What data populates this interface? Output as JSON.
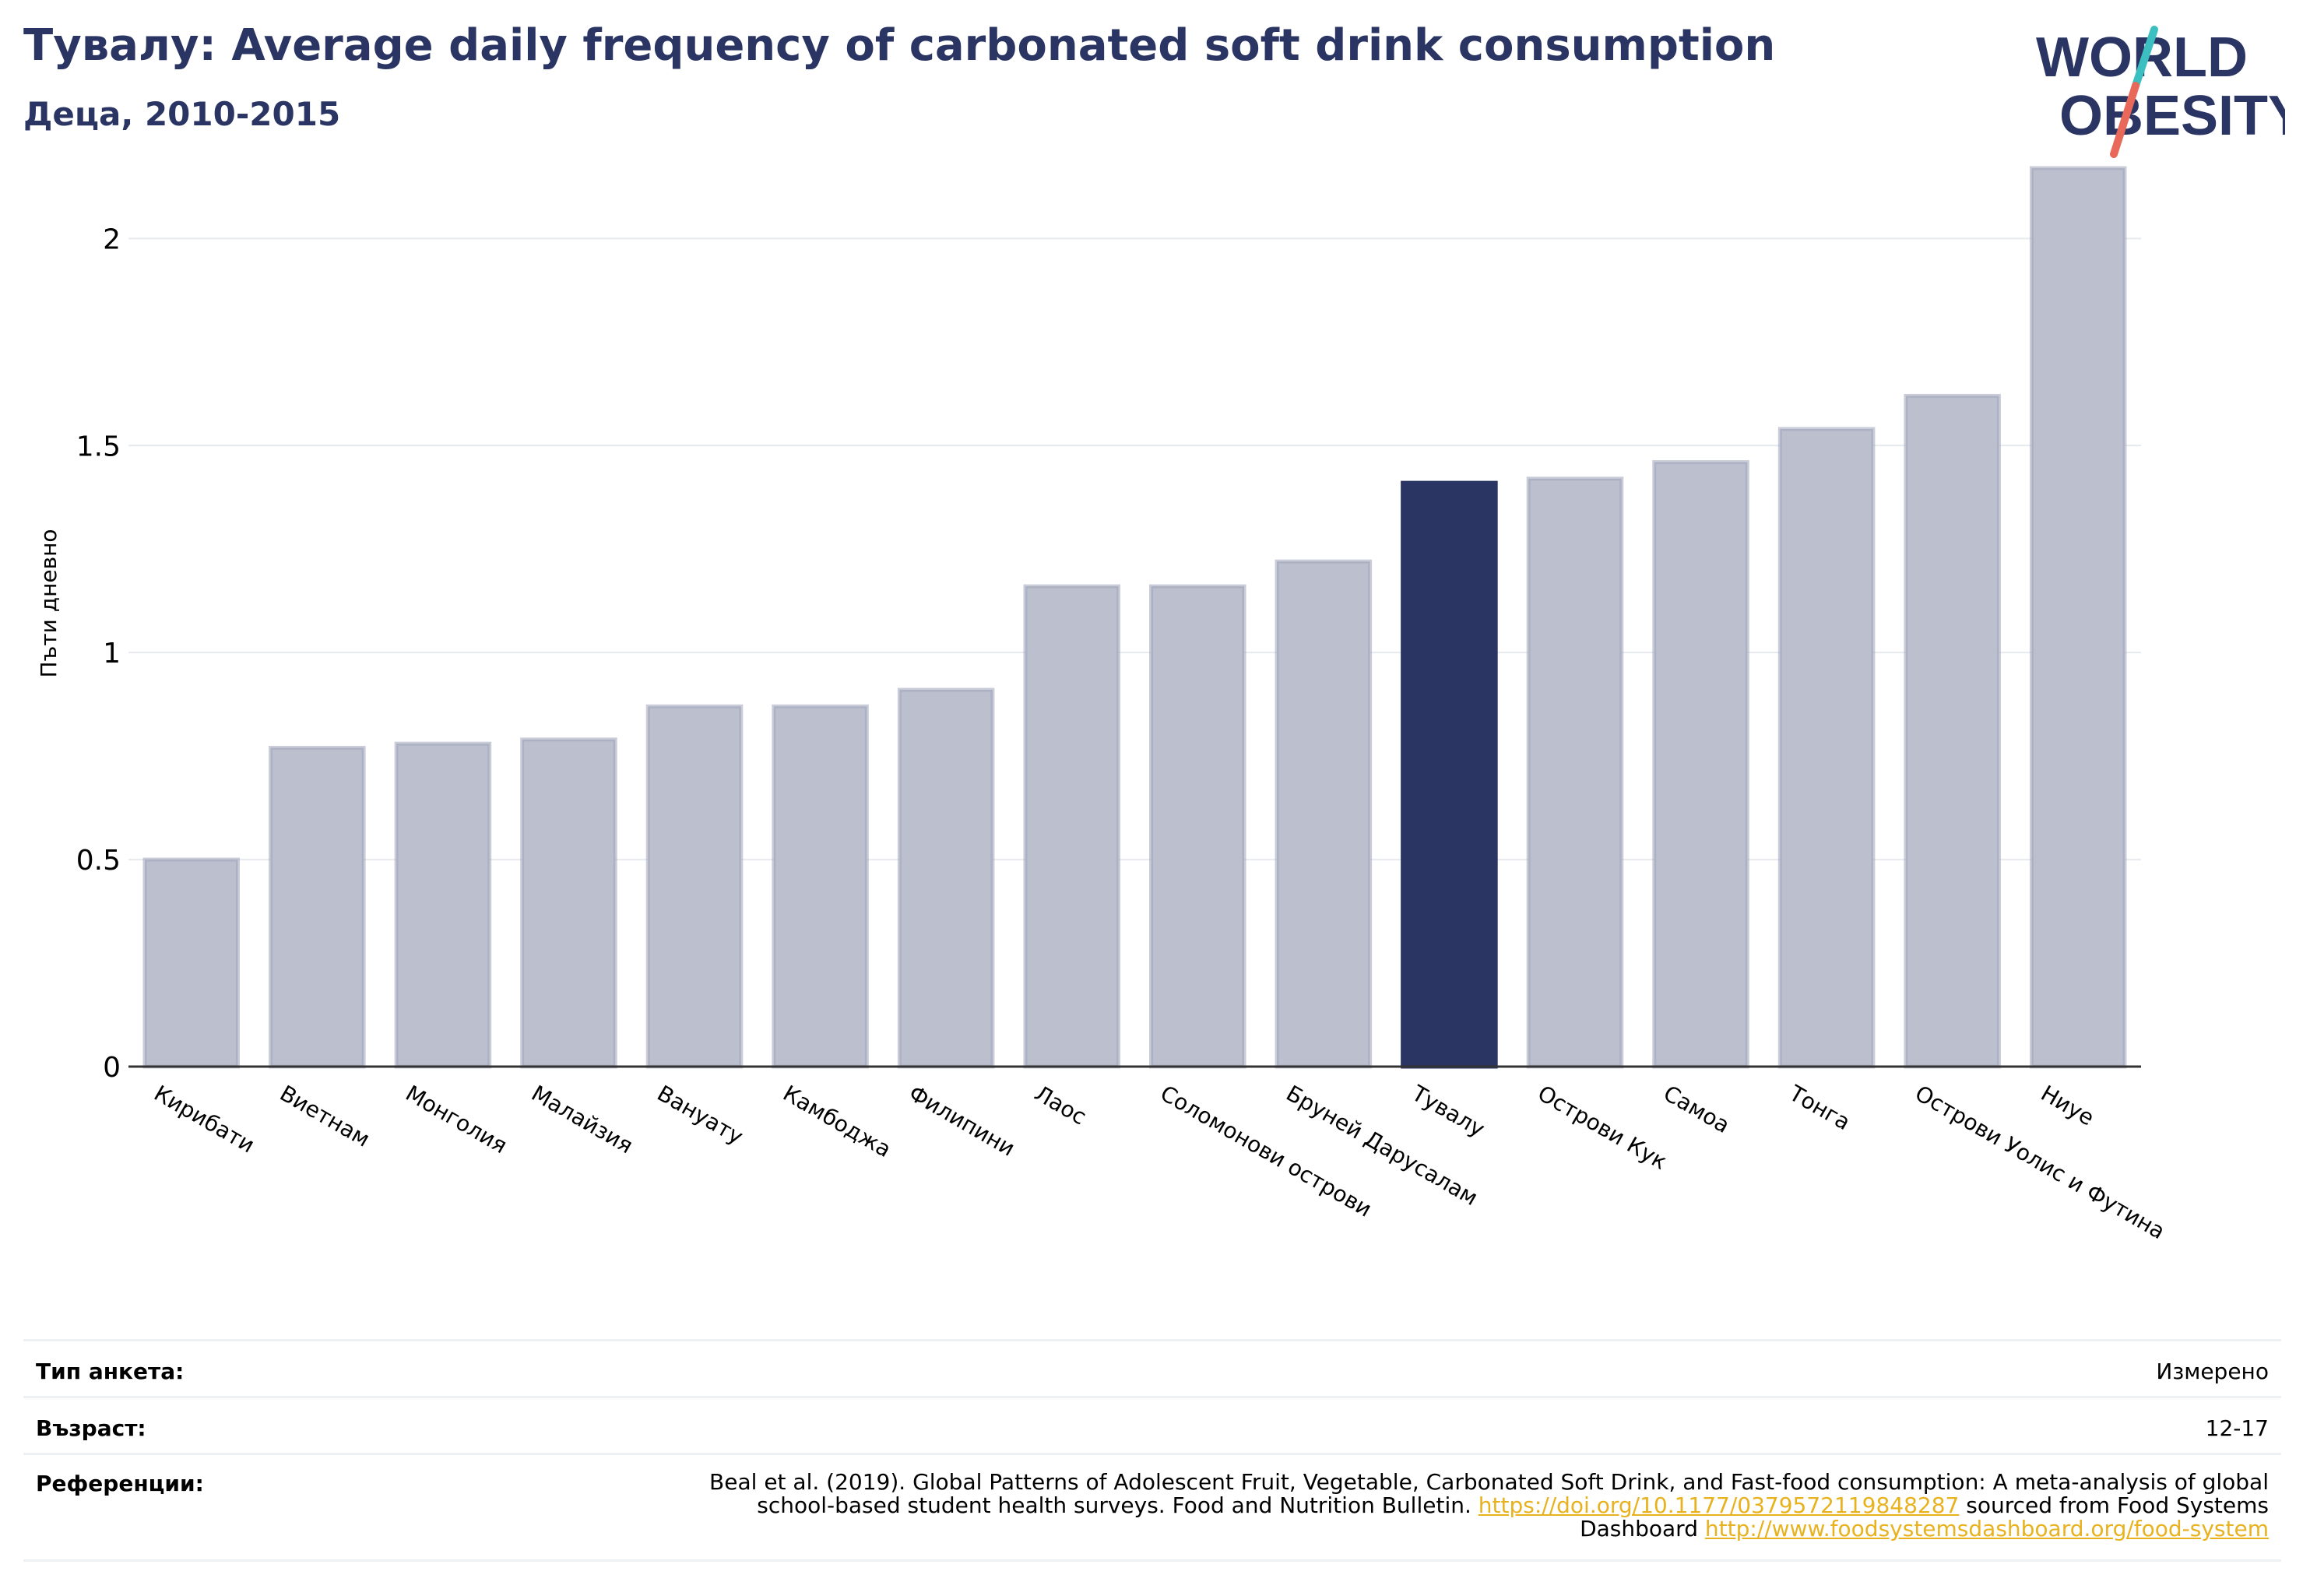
{
  "header": {
    "title": "Тувалу: Average daily frequency of carbonated soft drink consumption",
    "subtitle": "Деца, 2010-2015"
  },
  "logo": {
    "line1": "WORLD",
    "line2": "OBESITY",
    "colors": {
      "text": "#2a3563",
      "slash_top": "#3bbfc0",
      "slash_bottom": "#e8685a"
    }
  },
  "chart_data": {
    "type": "bar",
    "title": "Тувалу: Average daily frequency of carbonated soft drink consumption",
    "subtitle": "Деца, 2010-2015",
    "xlabel": "",
    "ylabel": "Пъти дневно",
    "ylim": [
      0,
      2.2
    ],
    "yticks": [
      0,
      0.5,
      1,
      1.5,
      2
    ],
    "ytick_labels": [
      "0",
      "0.5",
      "1",
      "1.5",
      "2"
    ],
    "grid": true,
    "highlight": "Тувалу",
    "categories": [
      "Кирибати",
      "Виетнам",
      "Монголия",
      "Малайзия",
      "Вануату",
      "Камбоджа",
      "Филипини",
      "Лаос",
      "Соломонови острови",
      "Бруней Дарусалам",
      "Тувалу",
      "Острови Кук",
      "Самоа",
      "Тонга",
      "Острови Уолис и Футина",
      "Ниуе"
    ],
    "values": [
      0.5,
      0.77,
      0.78,
      0.79,
      0.87,
      0.87,
      0.91,
      1.16,
      1.16,
      1.22,
      1.41,
      1.42,
      1.46,
      1.54,
      1.62,
      2.17
    ],
    "colors": {
      "bar": "#bcc0ce",
      "bar_edge": "#9fa4ba",
      "highlight": "#2a3563",
      "grid": "#e6eaee",
      "axis": "#333333"
    }
  },
  "footer": {
    "survey_label": "Тип анкета:",
    "survey_value": "Измерено",
    "age_label": "Възраст:",
    "age_value": "12-17",
    "refs_label": "Референции:",
    "refs_text1": "Beal et al. (2019). Global Patterns of Adolescent Fruit, Vegetable, Carbonated Soft Drink, and Fast-food consumption: A meta-analysis of global school-based student health surveys. Food and Nutrition Bulletin. ",
    "refs_link1": "https://doi.org/10.1177/0379572119848287",
    "refs_text2": " sourced from Food Systems Dashboard ",
    "refs_link2": "http://www.foodsystemsdashboard.org/food-system"
  }
}
